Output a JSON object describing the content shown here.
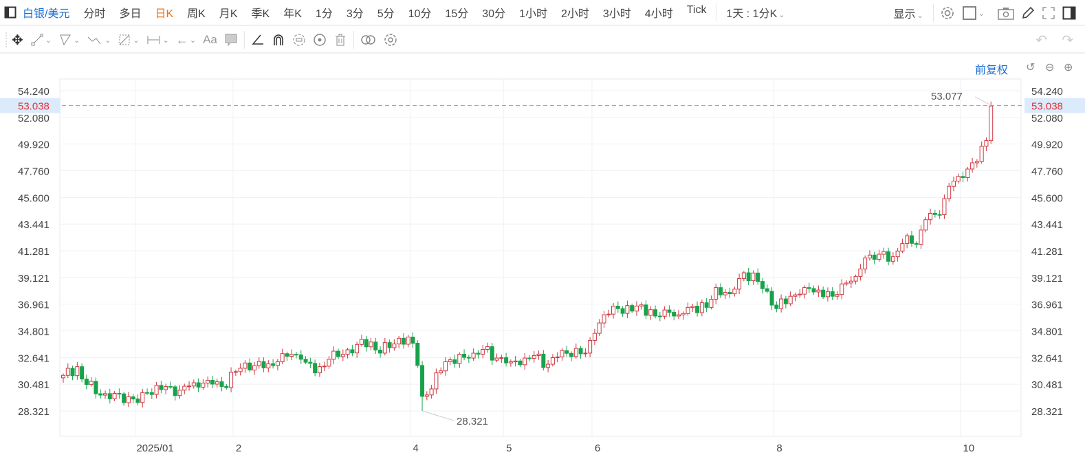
{
  "topbar": {
    "symbol": "白银/美元",
    "periods": [
      "分时",
      "多日",
      "日K",
      "周K",
      "月K",
      "季K",
      "年K",
      "1分",
      "3分",
      "5分",
      "10分",
      "15分",
      "30分",
      "1小时",
      "2小时",
      "3小时",
      "4小时",
      "Tick"
    ],
    "active_period": "日K",
    "range_select": "1天 : 1分K",
    "display_label": "显示"
  },
  "toolbar": {
    "text_tool": "Aa"
  },
  "chart_header": {
    "adjust_label": "前复权"
  },
  "chart_data": {
    "type": "candlestick",
    "y_ticks": [
      "54.240",
      "52.080",
      "49.920",
      "47.760",
      "45.600",
      "43.441",
      "41.281",
      "39.121",
      "36.961",
      "34.801",
      "32.641",
      "30.481",
      "28.321"
    ],
    "ylim": [
      28.321,
      54.24
    ],
    "x_ticks": [
      {
        "label": "2025/01",
        "day": 16
      },
      {
        "label": "2",
        "day": 37
      },
      {
        "label": "4",
        "day": 75
      },
      {
        "label": "5",
        "day": 95
      },
      {
        "label": "6",
        "day": 114
      },
      {
        "label": "8",
        "day": 153
      },
      {
        "label": "10",
        "day": 193
      }
    ],
    "total_days": 200,
    "close_path": [
      [
        0,
        31.2
      ],
      [
        3,
        31.9
      ],
      [
        4,
        30.9
      ],
      [
        8,
        29.6
      ],
      [
        10,
        29.3
      ],
      [
        12,
        29.7
      ],
      [
        16,
        29.0
      ],
      [
        18,
        29.8
      ],
      [
        22,
        30.3
      ],
      [
        25,
        30.0
      ],
      [
        28,
        30.6
      ],
      [
        31,
        30.8
      ],
      [
        34,
        30.3
      ],
      [
        37,
        31.5
      ],
      [
        39,
        32.2
      ],
      [
        43,
        31.8
      ],
      [
        46,
        32.3
      ],
      [
        49,
        32.9
      ],
      [
        51,
        32.5
      ],
      [
        54,
        31.4
      ],
      [
        57,
        32.5
      ],
      [
        60,
        32.9
      ],
      [
        63,
        33.7
      ],
      [
        66,
        33.9
      ],
      [
        68,
        33.0
      ],
      [
        72,
        34.2
      ],
      [
        75,
        33.8
      ],
      [
        76,
        32.0
      ],
      [
        77,
        29.5
      ],
      [
        79,
        30.1
      ],
      [
        80,
        31.4
      ],
      [
        82,
        32.3
      ],
      [
        87,
        32.6
      ],
      [
        90,
        33.3
      ],
      [
        93,
        32.6
      ],
      [
        96,
        32.3
      ],
      [
        99,
        32.6
      ],
      [
        101,
        32.8
      ],
      [
        104,
        32.1
      ],
      [
        107,
        33.2
      ],
      [
        112,
        33.0
      ],
      [
        114,
        34.6
      ],
      [
        116,
        36.1
      ],
      [
        119,
        36.6
      ],
      [
        122,
        36.4
      ],
      [
        124,
        36.9
      ],
      [
        127,
        36.0
      ],
      [
        130,
        36.3
      ],
      [
        132,
        36.1
      ],
      [
        135,
        36.8
      ],
      [
        138,
        36.7
      ],
      [
        140,
        38.3
      ],
      [
        143,
        37.8
      ],
      [
        146,
        39.5
      ],
      [
        149,
        38.8
      ],
      [
        151,
        38.0
      ],
      [
        153,
        36.6
      ],
      [
        156,
        37.6
      ],
      [
        159,
        38.3
      ],
      [
        162,
        38.1
      ],
      [
        165,
        37.6
      ],
      [
        167,
        38.6
      ],
      [
        170,
        39.2
      ],
      [
        172,
        40.7
      ],
      [
        175,
        41.0
      ],
      [
        178,
        40.8
      ],
      [
        181,
        42.5
      ],
      [
        183,
        41.8
      ],
      [
        185,
        43.8
      ],
      [
        188,
        44.2
      ],
      [
        190,
        46.5
      ],
      [
        192,
        47.3
      ],
      [
        194,
        47.9
      ],
      [
        196,
        48.5
      ],
      [
        198,
        50.2
      ],
      [
        199,
        53.0
      ]
    ],
    "last_price": "53.038",
    "high_label": {
      "value": "53.077",
      "day": 199
    },
    "low_label": {
      "value": "28.321",
      "day": 77
    },
    "colors": {
      "up": "#d0343c",
      "down": "#17a34a",
      "last": "#e8843c"
    }
  }
}
